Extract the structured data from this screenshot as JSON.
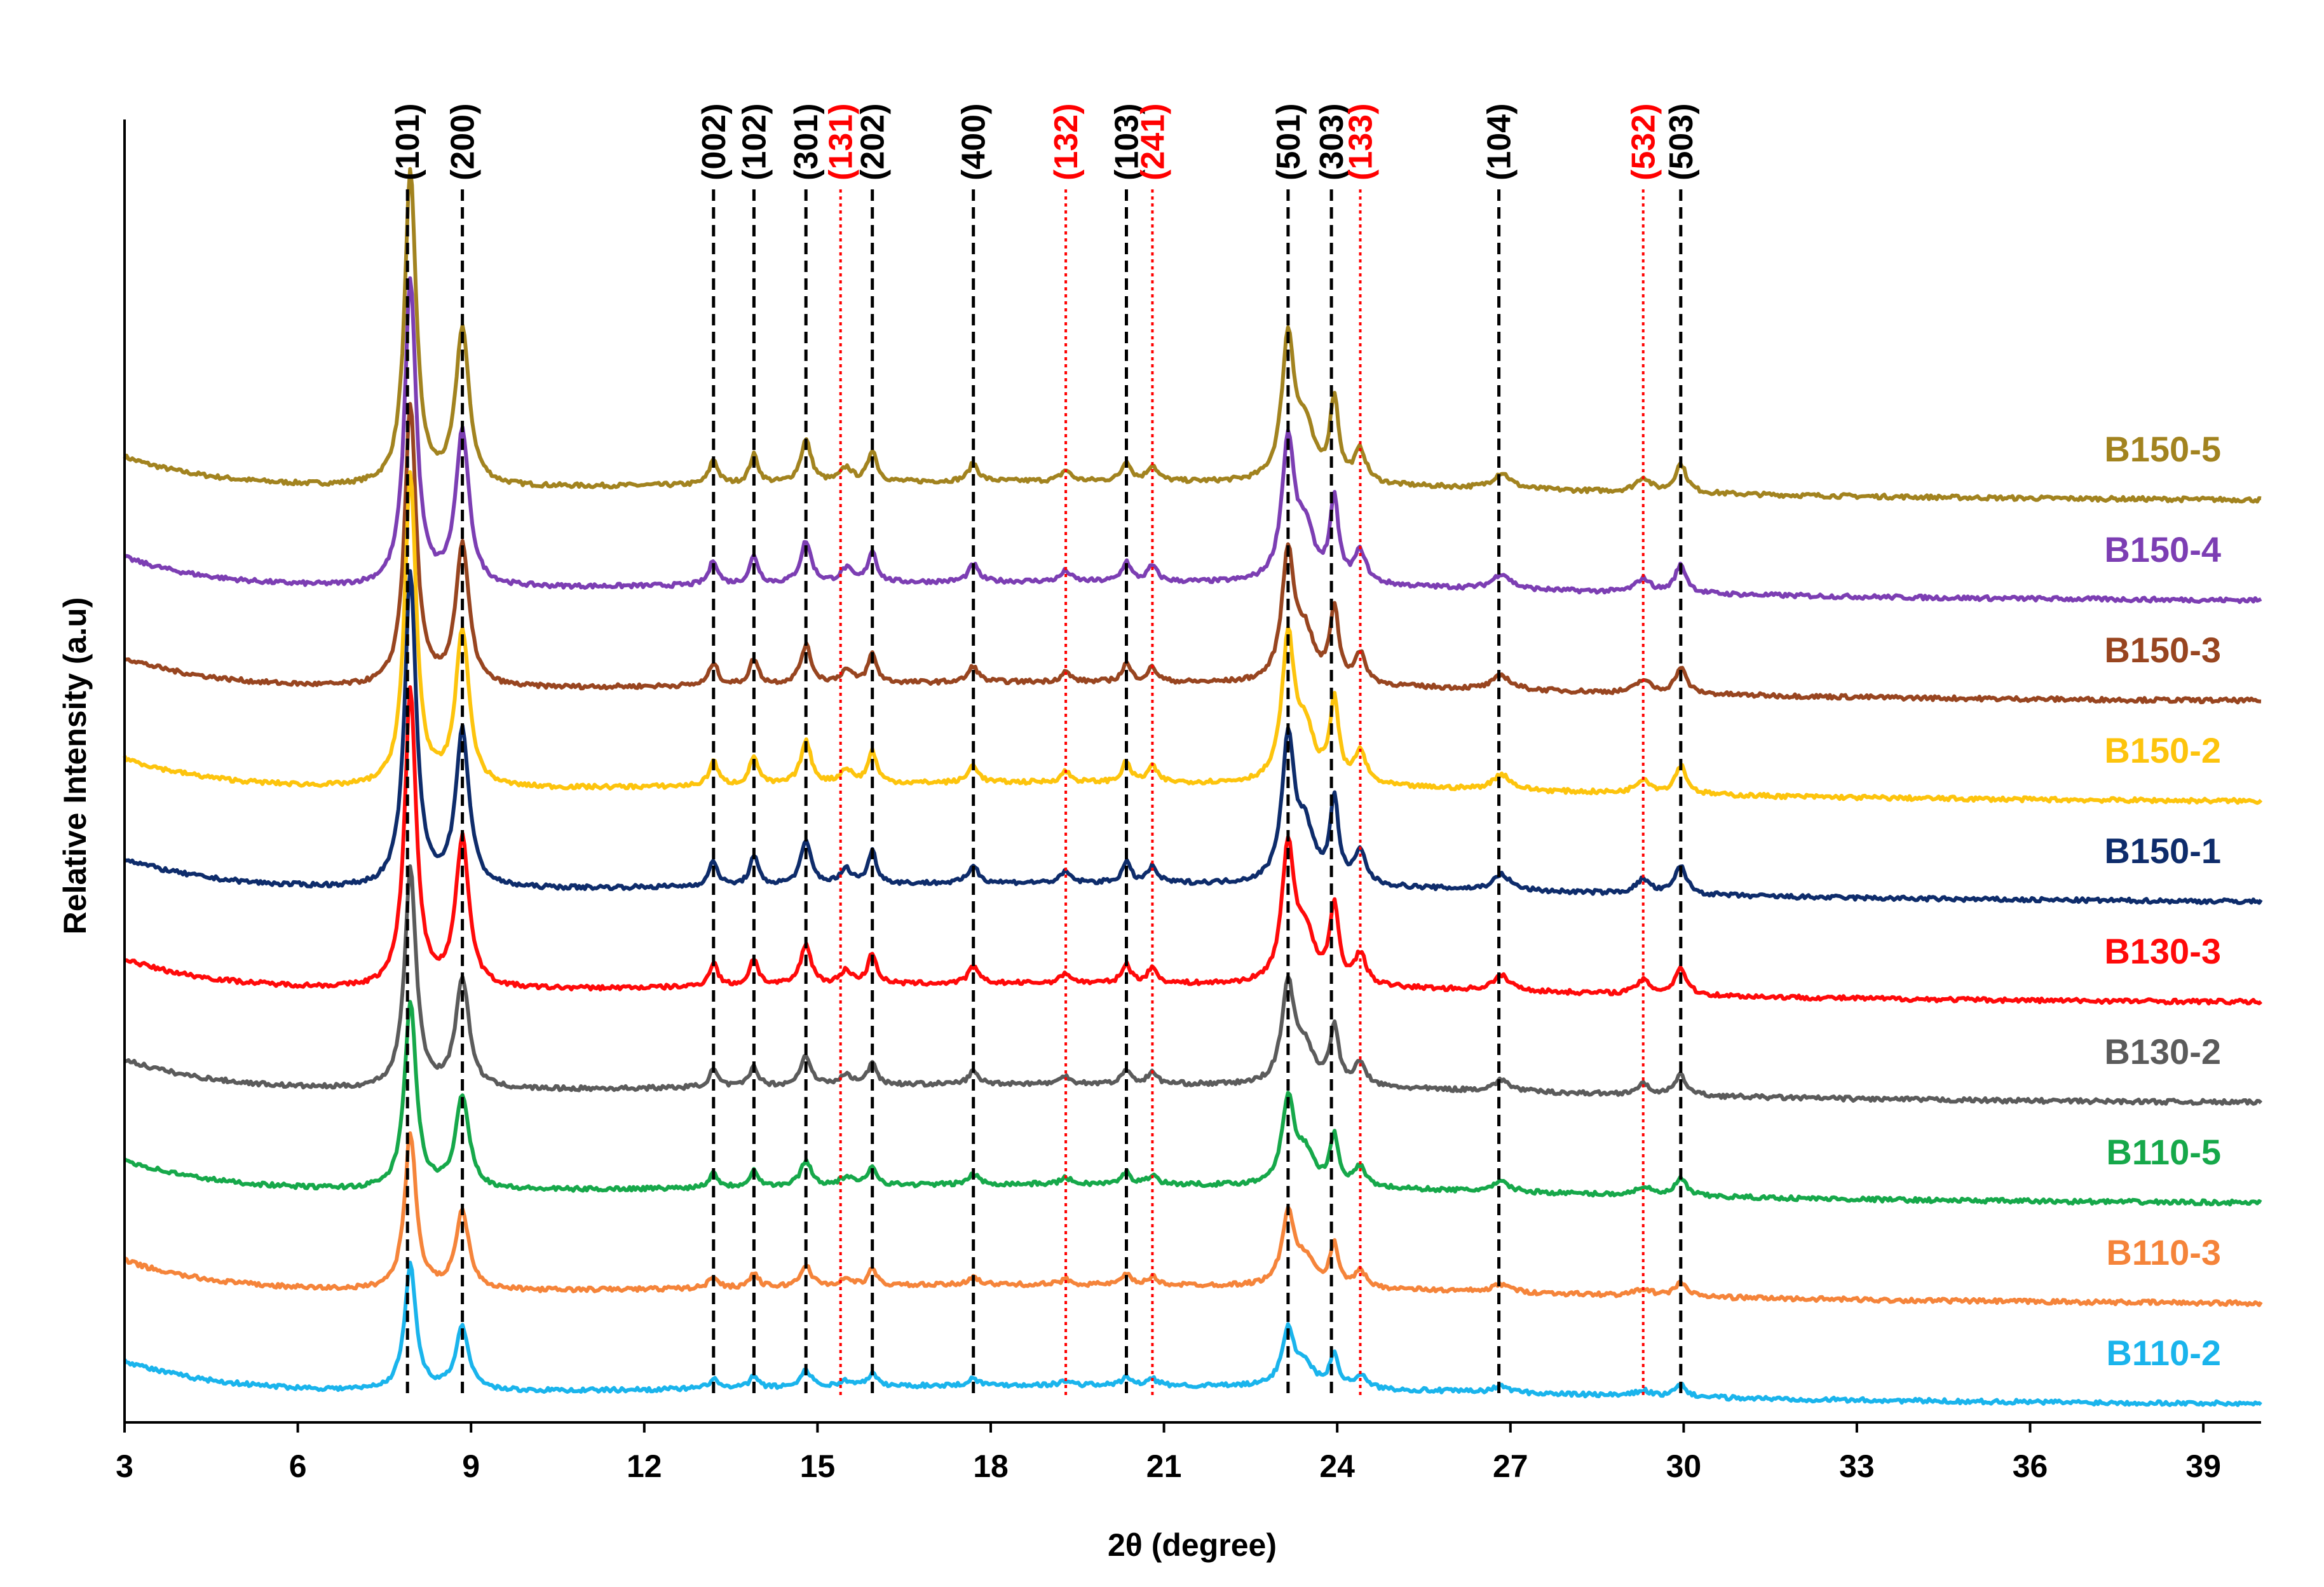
{
  "chart_data": {
    "type": "line",
    "title": "",
    "xlabel": "2θ (degree)",
    "ylabel": "Relative Intensity (a.u)",
    "xlim": [
      3,
      40
    ],
    "xticks": [
      3,
      6,
      9,
      12,
      15,
      18,
      21,
      24,
      27,
      30,
      33,
      36,
      39
    ],
    "grid": false,
    "legend_placement": "right, inline next to each trace",
    "reference_lines": [
      {
        "label": "(101)",
        "x": 7.9,
        "style": "dashed",
        "color": "#000000"
      },
      {
        "label": "(200)",
        "x": 8.85,
        "style": "dashed",
        "color": "#000000"
      },
      {
        "label": "(002)",
        "x": 13.2,
        "style": "dashed",
        "color": "#000000"
      },
      {
        "label": "(102)",
        "x": 13.9,
        "style": "dashed",
        "color": "#000000"
      },
      {
        "label": "(301)",
        "x": 14.8,
        "style": "dashed",
        "color": "#000000"
      },
      {
        "label": "(131)",
        "x": 15.4,
        "style": "dotted",
        "color": "#ff0000"
      },
      {
        "label": "(202)",
        "x": 15.95,
        "style": "dashed",
        "color": "#000000"
      },
      {
        "label": "(400)",
        "x": 17.7,
        "style": "dashed",
        "color": "#000000"
      },
      {
        "label": "(132)",
        "x": 19.3,
        "style": "dotted",
        "color": "#ff0000"
      },
      {
        "label": "(103)",
        "x": 20.35,
        "style": "dashed",
        "color": "#000000"
      },
      {
        "label": "(241)",
        "x": 20.8,
        "style": "dotted",
        "color": "#ff0000"
      },
      {
        "label": "(501)",
        "x": 23.15,
        "style": "dashed",
        "color": "#000000"
      },
      {
        "label": "(303)",
        "x": 23.9,
        "style": "dashed",
        "color": "#000000"
      },
      {
        "label": "(133)",
        "x": 24.4,
        "style": "dotted",
        "color": "#ff0000"
      },
      {
        "label": "(104)",
        "x": 26.8,
        "style": "dashed",
        "color": "#000000"
      },
      {
        "label": "(532)",
        "x": 29.3,
        "style": "dotted",
        "color": "#ff0000"
      },
      {
        "label": "(503)",
        "x": 29.95,
        "style": "dashed",
        "color": "#000000"
      }
    ],
    "series": [
      {
        "name": "B150-5",
        "color": "#a2831f",
        "offset": 9.0,
        "peak_scale": 1.0
      },
      {
        "name": "B150-4",
        "color": "#7c3eb3",
        "offset": 8.0,
        "peak_scale": 0.98
      },
      {
        "name": "B150-3",
        "color": "#984520",
        "offset": 7.0,
        "peak_scale": 0.9
      },
      {
        "name": "B150-2",
        "color": "#fdc40d",
        "offset": 6.0,
        "peak_scale": 1.0
      },
      {
        "name": "B150-1",
        "color": "#0e2c6b",
        "offset": 5.0,
        "peak_scale": 1.0
      },
      {
        "name": "B130-3",
        "color": "#ff0a0a",
        "offset": 4.0,
        "peak_scale": 0.95
      },
      {
        "name": "B130-2",
        "color": "#5b5b5b",
        "offset": 3.0,
        "peak_scale": 0.7
      },
      {
        "name": "B110-5",
        "color": "#16a84a",
        "offset": 2.0,
        "peak_scale": 0.6
      },
      {
        "name": "B110-3",
        "color": "#f5843a",
        "offset": 1.0,
        "peak_scale": 0.5
      },
      {
        "name": "B110-2",
        "color": "#1ab4ec",
        "offset": 0.0,
        "peak_scale": 0.4
      }
    ],
    "peaks": [
      {
        "x": 7.95,
        "height": 4.4,
        "width": 0.12
      },
      {
        "x": 8.85,
        "height": 2.2,
        "width": 0.14
      },
      {
        "x": 13.2,
        "height": 0.35,
        "width": 0.09
      },
      {
        "x": 13.9,
        "height": 0.4,
        "width": 0.09
      },
      {
        "x": 14.8,
        "height": 0.6,
        "width": 0.11
      },
      {
        "x": 15.5,
        "height": 0.2,
        "width": 0.12
      },
      {
        "x": 15.95,
        "height": 0.45,
        "width": 0.09
      },
      {
        "x": 17.7,
        "height": 0.25,
        "width": 0.1
      },
      {
        "x": 19.3,
        "height": 0.15,
        "width": 0.1
      },
      {
        "x": 20.35,
        "height": 0.28,
        "width": 0.09
      },
      {
        "x": 20.8,
        "height": 0.22,
        "width": 0.1
      },
      {
        "x": 23.15,
        "height": 2.0,
        "width": 0.13
      },
      {
        "x": 23.45,
        "height": 0.7,
        "width": 0.18
      },
      {
        "x": 23.95,
        "height": 1.15,
        "width": 0.09
      },
      {
        "x": 24.4,
        "height": 0.45,
        "width": 0.12
      },
      {
        "x": 26.85,
        "height": 0.22,
        "width": 0.18
      },
      {
        "x": 29.3,
        "height": 0.2,
        "width": 0.15
      },
      {
        "x": 29.95,
        "height": 0.4,
        "width": 0.12
      }
    ]
  }
}
